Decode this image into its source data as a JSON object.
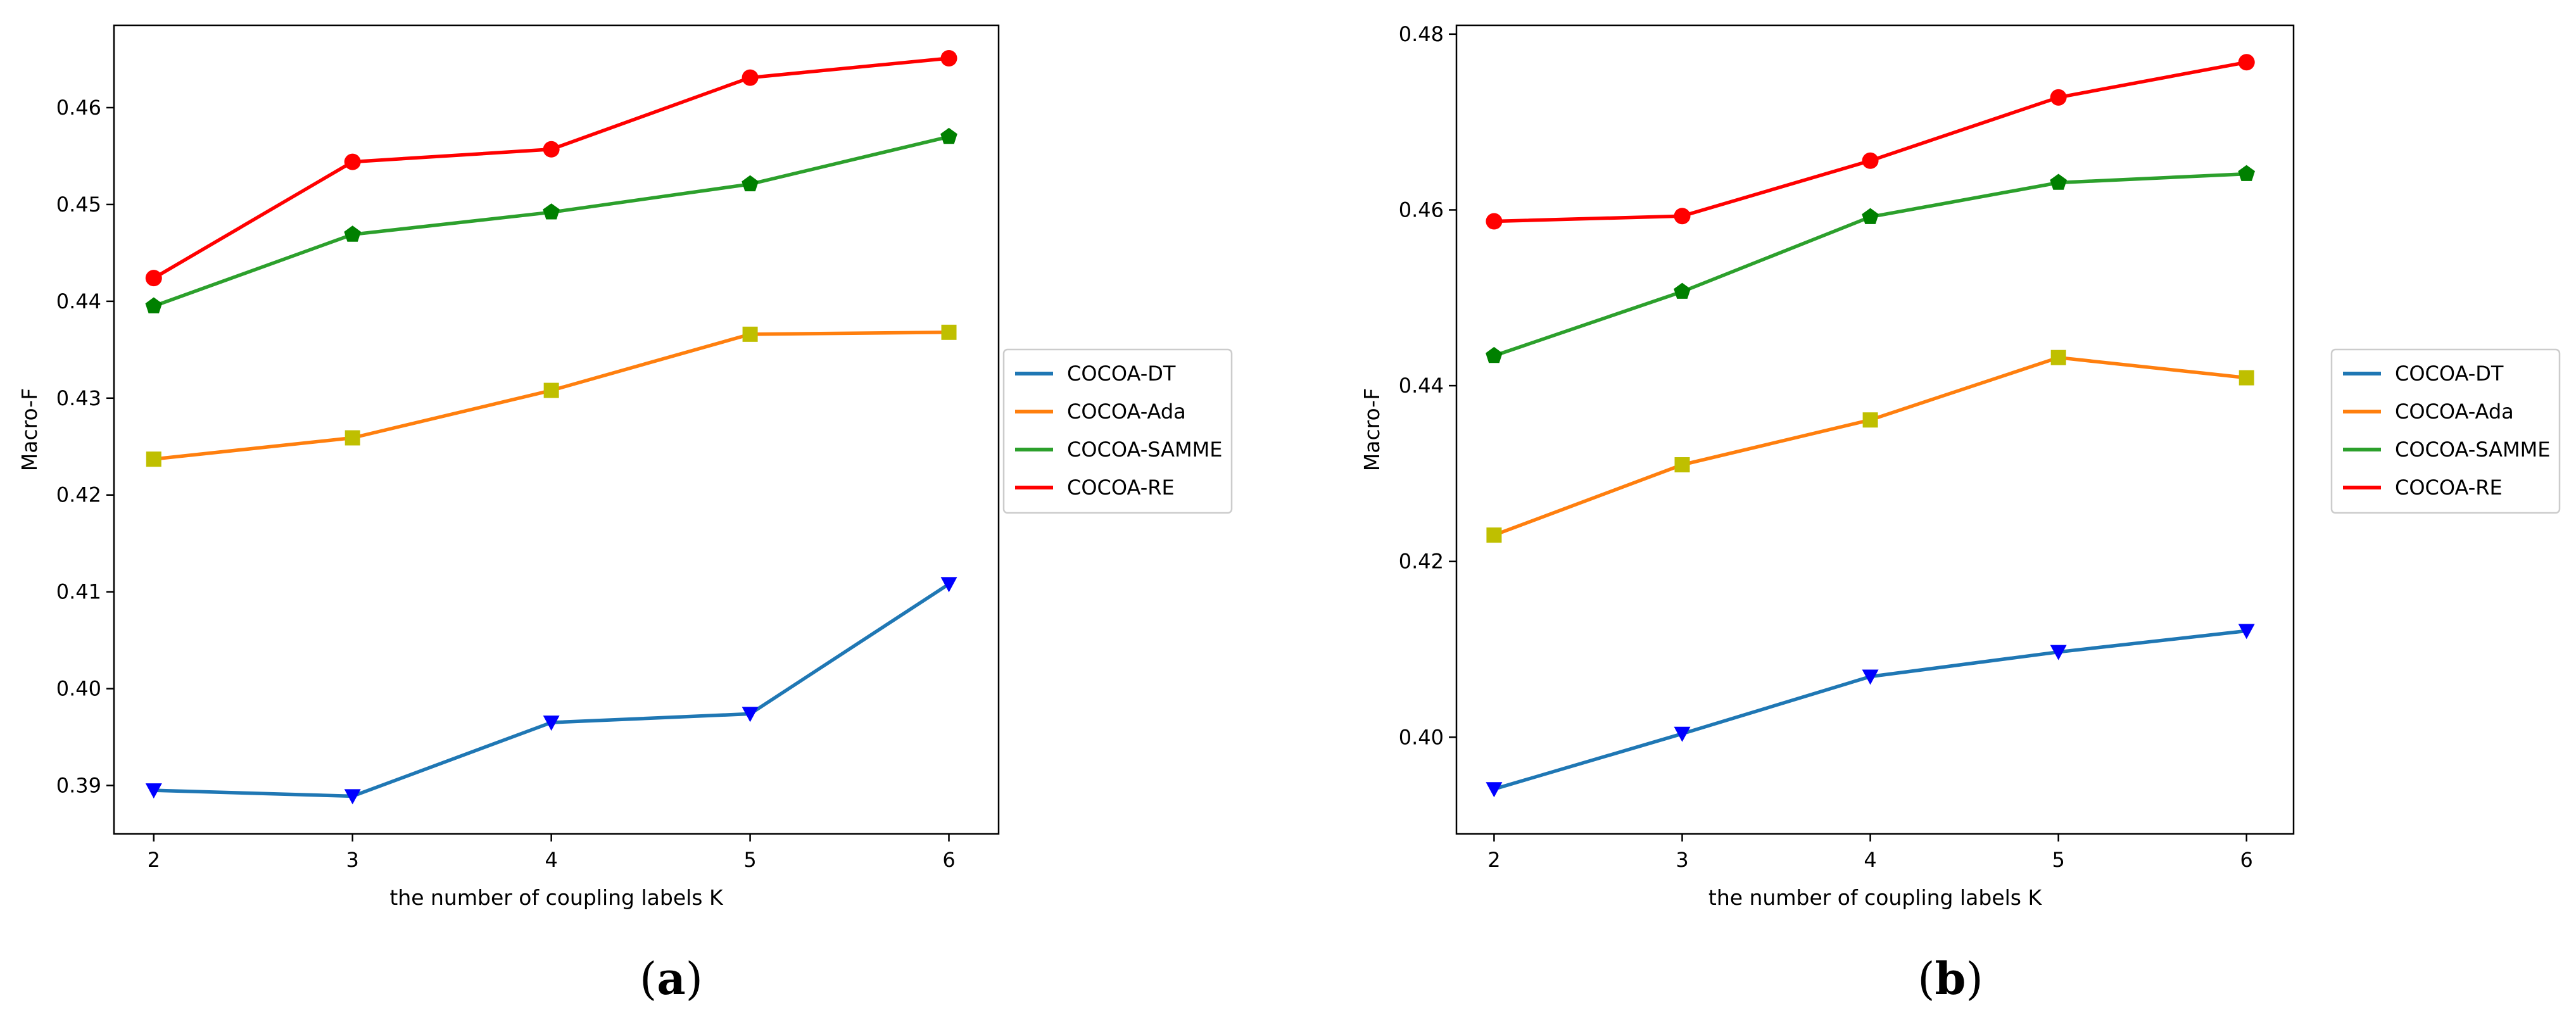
{
  "series_colors": {
    "COCOA-DT": "#1f77b4",
    "COCOA-Ada": "#ff7f0e",
    "COCOA-SAMME": "#2ca02c",
    "COCOA-RE": "#ff0000"
  },
  "marker_colors": {
    "COCOA-DT": "#0000ff",
    "COCOA-Ada": "#bfbf00",
    "COCOA-SAMME": "#008000",
    "COCOA-RE": "#ff0000"
  },
  "chart_data": [
    {
      "type": "line",
      "panel_label": "a",
      "title": "",
      "xlabel": "the number of coupling labels K",
      "ylabel": "Macro-F",
      "x": [
        2,
        3,
        4,
        5,
        6
      ],
      "xticks": [
        "2",
        "3",
        "4",
        "5",
        "6"
      ],
      "xlim": [
        1.8,
        6.25
      ],
      "ylim": [
        0.385,
        0.4685
      ],
      "yticks": [
        "0.39",
        "0.40",
        "0.41",
        "0.42",
        "0.43",
        "0.44",
        "0.45",
        "0.46"
      ],
      "ytick_values": [
        0.39,
        0.4,
        0.41,
        0.42,
        0.43,
        0.44,
        0.45,
        0.46
      ],
      "grid": false,
      "legend_position": "right-outside",
      "series": [
        {
          "name": "COCOA-DT",
          "marker": "triangle-down",
          "values": [
            0.3895,
            0.3889,
            0.3965,
            0.3974,
            0.4108
          ]
        },
        {
          "name": "COCOA-Ada",
          "marker": "square",
          "values": [
            0.4237,
            0.4259,
            0.4308,
            0.4366,
            0.4368
          ]
        },
        {
          "name": "COCOA-SAMME",
          "marker": "pentagon",
          "values": [
            0.4395,
            0.4469,
            0.4492,
            0.4521,
            0.457
          ]
        },
        {
          "name": "COCOA-RE",
          "marker": "circle",
          "values": [
            0.4424,
            0.4544,
            0.4557,
            0.4631,
            0.4651
          ]
        }
      ]
    },
    {
      "type": "line",
      "panel_label": "b",
      "title": "",
      "xlabel": "the number of coupling labels K",
      "ylabel": "Macro-F",
      "x": [
        2,
        3,
        4,
        5,
        6
      ],
      "xticks": [
        "2",
        "3",
        "4",
        "5",
        "6"
      ],
      "xlim": [
        1.8,
        6.25
      ],
      "ylim": [
        0.389,
        0.481
      ],
      "yticks": [
        "0.40",
        "0.42",
        "0.44",
        "0.46",
        "0.48"
      ],
      "ytick_values": [
        0.4,
        0.42,
        0.44,
        0.46,
        0.48
      ],
      "grid": false,
      "legend_position": "right-outside",
      "series": [
        {
          "name": "COCOA-DT",
          "marker": "triangle-down",
          "values": [
            0.3941,
            0.4004,
            0.4069,
            0.4097,
            0.4121
          ]
        },
        {
          "name": "COCOA-Ada",
          "marker": "square",
          "values": [
            0.423,
            0.431,
            0.4361,
            0.4432,
            0.4409
          ]
        },
        {
          "name": "COCOA-SAMME",
          "marker": "pentagon",
          "values": [
            0.4434,
            0.4507,
            0.4592,
            0.4631,
            0.4641
          ]
        },
        {
          "name": "COCOA-RE",
          "marker": "circle",
          "values": [
            0.4587,
            0.4593,
            0.4656,
            0.4728,
            0.4768
          ]
        }
      ]
    }
  ]
}
